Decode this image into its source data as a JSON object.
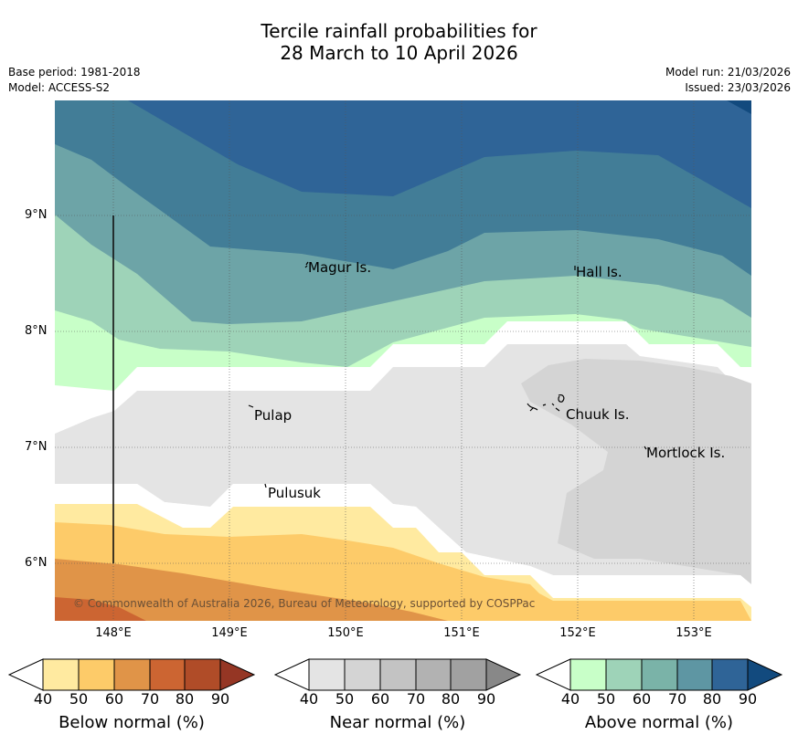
{
  "title": {
    "line1": "Tercile rainfall probabilities for",
    "line2": "28 March to 10 April 2026"
  },
  "metadata": {
    "base_period": "Base period: 1981-2018",
    "model": "Model: ACCESS-S2",
    "model_run": "Model run: 21/03/2026",
    "issued": "Issued: 23/03/2026"
  },
  "axes": {
    "latitudes": [
      "9°N",
      "8°N",
      "7°N",
      "6°N"
    ],
    "longitudes": [
      "148°E",
      "149°E",
      "150°E",
      "151°E",
      "152°E",
      "153°E"
    ]
  },
  "places": [
    {
      "name": "Magur Is."
    },
    {
      "name": "Hall Is."
    },
    {
      "name": "Pulap"
    },
    {
      "name": "Chuuk Is."
    },
    {
      "name": "Mortlock Is."
    },
    {
      "name": "Pulusuk"
    }
  ],
  "copyright": "© Commonwealth of Australia 2026, Bureau of Meteorology, supported by COSPPac",
  "colorbars": [
    {
      "label": "Below normal (%)",
      "ticks": [
        "40",
        "50",
        "60",
        "70",
        "80",
        "90"
      ],
      "colors": [
        "#ffffff",
        "#ffeaa0",
        "#fdcb69",
        "#e09448",
        "#cc6532",
        "#b04c28",
        "#953624"
      ]
    },
    {
      "label": "Near normal (%)",
      "ticks": [
        "40",
        "50",
        "60",
        "70",
        "80",
        "90"
      ],
      "colors": [
        "#ffffff",
        "#e4e4e4",
        "#d4d4d4",
        "#c3c3c3",
        "#b2b2b2",
        "#a1a1a1",
        "#888888"
      ]
    },
    {
      "label": "Above normal (%)",
      "ticks": [
        "40",
        "50",
        "60",
        "70",
        "80",
        "90"
      ],
      "colors": [
        "#ffffff",
        "#c8ffc8",
        "#9ed3b8",
        "#7ab3a8",
        "#5e96a3",
        "#2f6497",
        "#124a7e"
      ]
    }
  ],
  "map_colors": {
    "above_80": "#2f6497",
    "above_70": "#427d97",
    "above_60": "#6da4a7",
    "above_50": "#9ed3b8",
    "above_40": "#c8ffc8",
    "near_40": "#e4e4e4",
    "near_50": "#d4d4d4",
    "below_40": "#ffeaa0",
    "below_50": "#fdcb69",
    "below_60": "#e09448",
    "below_70": "#cc6532",
    "above_90": "#124a7e"
  }
}
